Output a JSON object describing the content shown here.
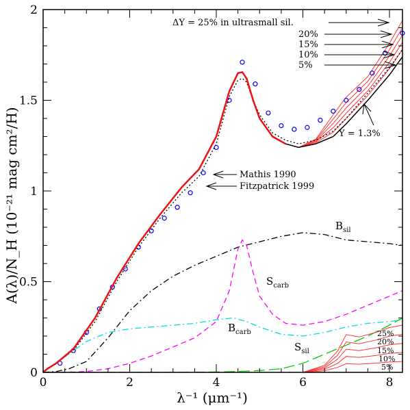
{
  "chart_data": {
    "type": "line",
    "xlabel": "λ⁻¹ (μm⁻¹)",
    "ylabel": "A(λ)/N_H (10⁻²¹ mag cm²/H)",
    "xlim": [
      0,
      8.3
    ],
    "ylim": [
      0,
      2
    ],
    "x_ticks": [
      "0",
      "2",
      "4",
      "6",
      "8"
    ],
    "y_ticks": [
      "0",
      "0.5",
      "1",
      "1.5",
      "2"
    ],
    "annotations": {
      "ultrasmall_header": "ΔY = 25% in ultrasmall sil.",
      "pct_top": [
        "20%",
        "15%",
        "10%",
        "5%"
      ],
      "ysi": "Y = 1.3%",
      "mathis": "Mathis 1990",
      "fitz": "Fitzpatrick 1999",
      "pct_bottom": [
        "25%",
        "20%",
        "15%",
        "10%",
        "5%"
      ]
    },
    "component_labels": {
      "bsil": "B",
      "bsil_sub": "sil",
      "scarb": "S",
      "scarb_sub": "carb",
      "bcarb": "B",
      "bcarb_sub": "carb",
      "ssil": "S",
      "ssil_sub": "sil"
    },
    "series": [
      {
        "key": "model_total",
        "color": "#000000",
        "style": "solid",
        "x": [
          0,
          0.1,
          0.3,
          0.7,
          1.2,
          1.7,
          2.2,
          2.7,
          3.2,
          3.6,
          4.0,
          4.3,
          4.5,
          4.6,
          4.7,
          4.85,
          5.0,
          5.3,
          5.6,
          5.9,
          6.3,
          6.7,
          7.0,
          7.5,
          8.0,
          8.3
        ],
        "y": [
          0,
          0.02,
          0.05,
          0.13,
          0.3,
          0.52,
          0.71,
          0.87,
          1.02,
          1.12,
          1.3,
          1.55,
          1.65,
          1.655,
          1.62,
          1.5,
          1.4,
          1.3,
          1.26,
          1.24,
          1.26,
          1.3,
          1.37,
          1.5,
          1.64,
          1.74
        ]
      },
      {
        "key": "mathis_1990",
        "color": "#000000",
        "style": "dotted",
        "x": [
          0,
          0.3,
          0.7,
          1.2,
          1.7,
          2.2,
          2.7,
          3.2,
          3.6,
          4.0,
          4.3,
          4.5,
          4.6,
          4.7,
          4.85,
          5.0,
          5.3,
          5.6,
          5.9,
          6.3,
          6.7,
          7.0,
          7.5,
          8.0,
          8.3
        ],
        "y": [
          0,
          0.05,
          0.12,
          0.28,
          0.5,
          0.69,
          0.85,
          0.99,
          1.08,
          1.26,
          1.52,
          1.61,
          1.62,
          1.6,
          1.5,
          1.42,
          1.32,
          1.28,
          1.26,
          1.28,
          1.33,
          1.4,
          1.54,
          1.68,
          1.78
        ]
      },
      {
        "key": "fitzpatrick_1999",
        "color": "#0000ff",
        "style": "points",
        "x": [
          0.39,
          0.7,
          1.0,
          1.3,
          1.6,
          1.9,
          2.2,
          2.5,
          2.8,
          3.1,
          3.4,
          3.7,
          4.0,
          4.3,
          4.6,
          4.9,
          5.2,
          5.5,
          5.8,
          6.1,
          6.4,
          6.7,
          7.0,
          7.3,
          7.6,
          7.9,
          8.3
        ],
        "y": [
          0.05,
          0.12,
          0.22,
          0.35,
          0.47,
          0.57,
          0.69,
          0.78,
          0.85,
          0.91,
          0.99,
          1.1,
          1.24,
          1.5,
          1.71,
          1.59,
          1.43,
          1.36,
          1.34,
          1.35,
          1.39,
          1.44,
          1.5,
          1.56,
          1.65,
          1.76,
          1.87
        ]
      },
      {
        "key": "B_sil",
        "color": "#000000",
        "style": "dashdot",
        "x": [
          0,
          0.3,
          0.6,
          1.0,
          1.5,
          2.0,
          2.5,
          3.0,
          3.5,
          4.0,
          4.5,
          5.0,
          5.5,
          6.0,
          6.5,
          7.0,
          7.5,
          8.0,
          8.3
        ],
        "y": [
          0,
          0.005,
          0.02,
          0.06,
          0.19,
          0.34,
          0.45,
          0.53,
          0.59,
          0.64,
          0.69,
          0.72,
          0.75,
          0.77,
          0.76,
          0.73,
          0.72,
          0.71,
          0.7
        ]
      },
      {
        "key": "S_carb",
        "color": "#ff00ff",
        "style": "dashed",
        "x": [
          0,
          0.5,
          1.0,
          1.5,
          2.0,
          2.5,
          3.0,
          3.5,
          4.0,
          4.3,
          4.5,
          4.6,
          4.7,
          4.85,
          5.0,
          5.3,
          5.6,
          6.0,
          6.5,
          7.0,
          7.5,
          8.0,
          8.3
        ],
        "y": [
          0,
          0,
          0.005,
          0.02,
          0.05,
          0.09,
          0.14,
          0.19,
          0.28,
          0.45,
          0.68,
          0.73,
          0.7,
          0.55,
          0.42,
          0.32,
          0.27,
          0.26,
          0.28,
          0.32,
          0.37,
          0.42,
          0.45
        ]
      },
      {
        "key": "B_carb",
        "color": "#00dddd",
        "style": "dashdot",
        "x": [
          0,
          0.3,
          0.7,
          1.0,
          1.5,
          2.0,
          2.5,
          3.0,
          3.5,
          4.0,
          4.4,
          4.7,
          5.0,
          5.5,
          6.0,
          6.5,
          7.0,
          7.5,
          8.0,
          8.3
        ],
        "y": [
          0,
          0.05,
          0.12,
          0.17,
          0.22,
          0.24,
          0.25,
          0.26,
          0.27,
          0.29,
          0.3,
          0.28,
          0.25,
          0.21,
          0.2,
          0.22,
          0.25,
          0.27,
          0.28,
          0.29
        ]
      },
      {
        "key": "S_sil",
        "color": "#00cc00",
        "style": "longdash",
        "x": [
          0,
          2.0,
          3.0,
          4.0,
          4.5,
          5.0,
          5.5,
          6.0,
          6.5,
          7.0,
          7.5,
          8.0,
          8.3
        ],
        "y": [
          0,
          0,
          0,
          0.002,
          0.005,
          0.01,
          0.02,
          0.05,
          0.1,
          0.15,
          0.2,
          0.26,
          0.3
        ]
      }
    ],
    "ultrasmall_top_offsets": [
      0.04,
      0.08,
      0.12,
      0.16,
      0.2
    ],
    "ultrasmall_bottom_peaks": [
      0.06,
      0.11,
      0.16,
      0.21,
      0.26
    ]
  }
}
